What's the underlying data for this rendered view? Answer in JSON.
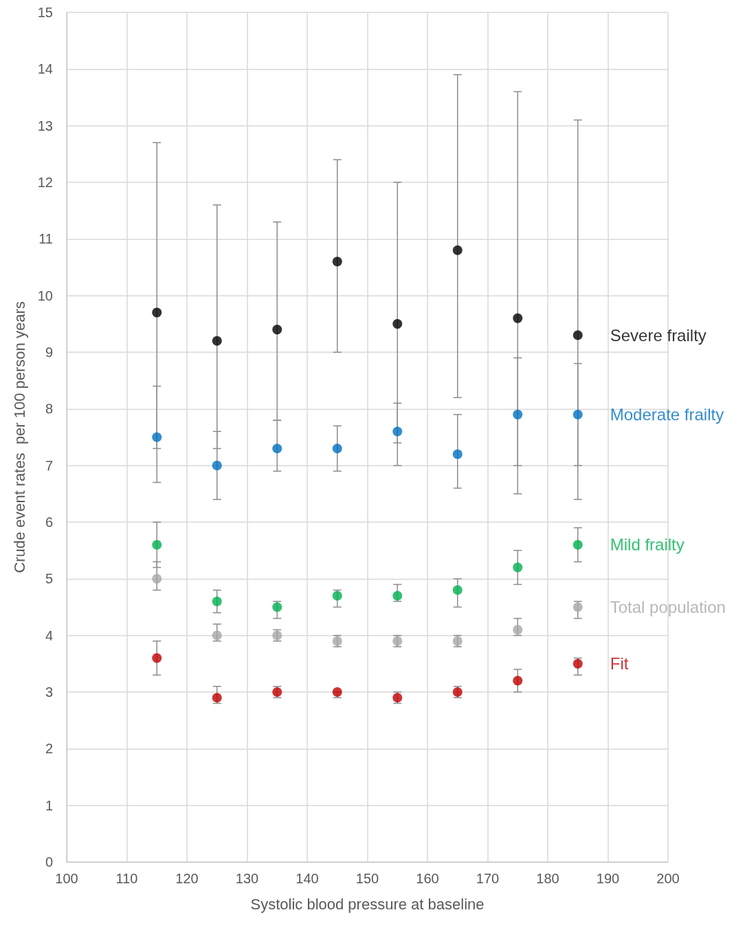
{
  "chart_data": {
    "type": "scatter",
    "xlabel": "Systolic blood pressure at baseline",
    "ylabel": "Crude event rates  per 100 person years",
    "x": [
      115,
      125,
      135,
      145,
      155,
      165,
      175,
      185
    ],
    "xlim": [
      100,
      200
    ],
    "xticks": [
      100,
      110,
      120,
      130,
      140,
      150,
      160,
      170,
      180,
      190,
      200
    ],
    "ylim": [
      0,
      15
    ],
    "yticks": [
      0,
      1,
      2,
      3,
      4,
      5,
      6,
      7,
      8,
      9,
      10,
      11,
      12,
      13,
      14,
      15
    ],
    "grid": true,
    "legend": false,
    "marker": "circle",
    "series": [
      {
        "name": "Severe frailty",
        "color": "#000000",
        "values": [
          9.7,
          9.2,
          9.4,
          10.6,
          9.5,
          10.8,
          9.6,
          9.3
        ],
        "errors": [
          [
            7.3,
            12.7
          ],
          [
            7.3,
            11.6
          ],
          [
            7.8,
            11.3
          ],
          [
            9.0,
            12.4
          ],
          [
            7.4,
            12.0
          ],
          [
            8.2,
            13.9
          ],
          [
            6.5,
            13.6
          ],
          [
            6.4,
            13.1
          ]
        ]
      },
      {
        "name": "Moderate frailty",
        "color": "#0070c0",
        "values": [
          7.5,
          7.0,
          7.3,
          7.3,
          7.6,
          7.2,
          7.9,
          7.9
        ],
        "errors": [
          [
            6.7,
            8.4
          ],
          [
            6.4,
            7.6
          ],
          [
            6.9,
            7.8
          ],
          [
            6.9,
            7.7
          ],
          [
            7.0,
            8.1
          ],
          [
            6.6,
            7.9
          ],
          [
            7.0,
            8.9
          ],
          [
            7.0,
            8.8
          ]
        ]
      },
      {
        "name": "Mild frailty",
        "color": "#00b050",
        "values": [
          5.6,
          4.6,
          4.5,
          4.7,
          4.7,
          4.8,
          5.2,
          5.6
        ],
        "errors": [
          [
            5.2,
            6.0
          ],
          [
            4.4,
            4.8
          ],
          [
            4.3,
            4.6
          ],
          [
            4.5,
            4.8
          ],
          [
            4.6,
            4.9
          ],
          [
            4.5,
            5.0
          ],
          [
            4.9,
            5.5
          ],
          [
            5.3,
            5.9
          ]
        ]
      },
      {
        "name": "Total population",
        "color": "#a6a6a6",
        "values": [
          5.0,
          4.0,
          4.0,
          3.9,
          3.9,
          3.9,
          4.1,
          4.5
        ],
        "errors": [
          [
            4.8,
            5.3
          ],
          [
            3.9,
            4.2
          ],
          [
            3.9,
            4.1
          ],
          [
            3.8,
            4.0
          ],
          [
            3.8,
            4.0
          ],
          [
            3.8,
            4.0
          ],
          [
            4.0,
            4.3
          ],
          [
            4.3,
            4.6
          ]
        ]
      },
      {
        "name": "Fit",
        "color": "#c00000",
        "values": [
          3.6,
          2.9,
          3.0,
          3.0,
          2.9,
          3.0,
          3.2,
          3.5
        ],
        "errors": [
          [
            3.3,
            3.9
          ],
          [
            2.8,
            3.1
          ],
          [
            2.9,
            3.1
          ],
          [
            2.9,
            3.0
          ],
          [
            2.8,
            3.0
          ],
          [
            2.9,
            3.1
          ],
          [
            3.0,
            3.4
          ],
          [
            3.3,
            3.6
          ]
        ]
      }
    ]
  }
}
